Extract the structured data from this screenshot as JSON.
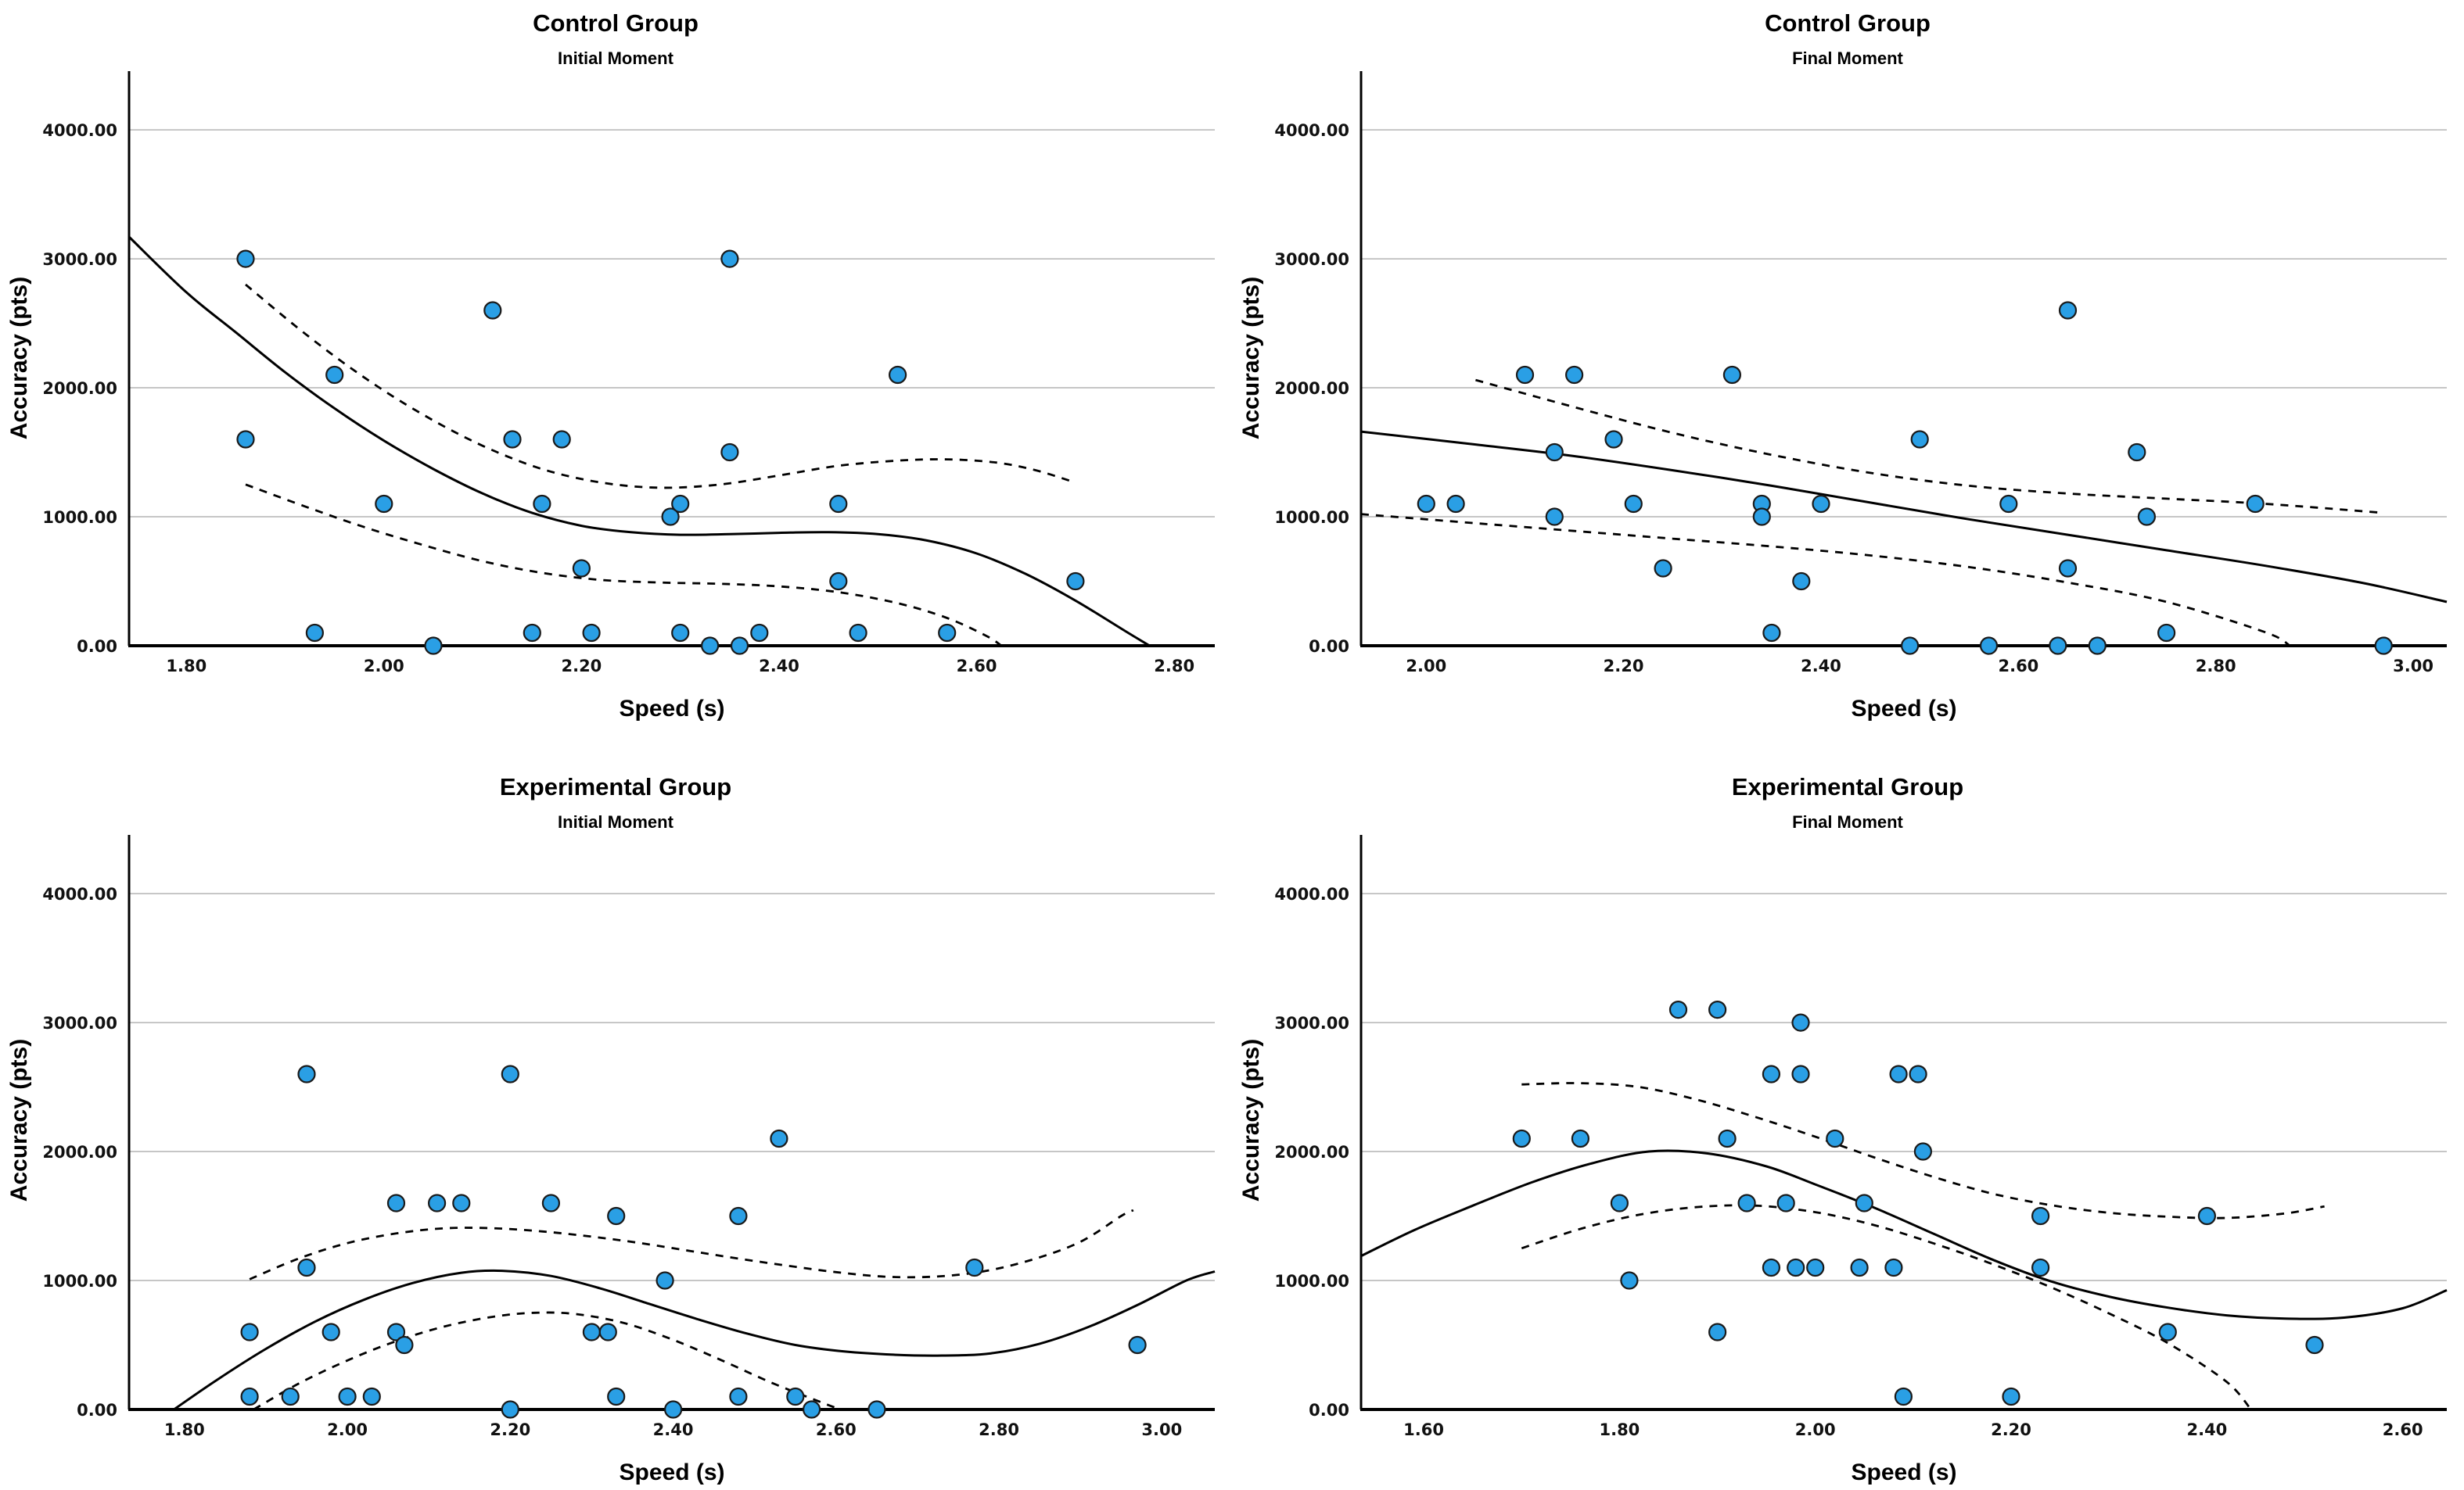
{
  "page": {
    "background": "#ffffff"
  },
  "style": {
    "point_fill": "#2A9FE5",
    "point_stroke": "#1a1a1a",
    "grid_color": "#b4b4b4",
    "axis_color": "#000000",
    "curve_color": "#000000",
    "text_color": "#000000"
  },
  "chart_data": [
    {
      "type": "scatter",
      "title": "Control Group",
      "subtitle": "Initial Moment",
      "xlabel": "Speed (s)",
      "ylabel": "Accuracy (pts)",
      "xlim": [
        1.742,
        2.841
      ],
      "ylim": [
        0,
        4455
      ],
      "grid": "horizontal",
      "x_tick_values": [
        1.8,
        2.0,
        2.2,
        2.4,
        2.6,
        2.8
      ],
      "x_tick_labels": [
        "1.80",
        "2.00",
        "2.20",
        "2.40",
        "2.60",
        "2.80"
      ],
      "y_tick_values": [
        0,
        1000,
        2000,
        3000,
        4000
      ],
      "y_tick_labels": [
        "0.00",
        "1000.00",
        "2000.00",
        "3000.00",
        "4000.00"
      ],
      "points": [
        [
          1.86,
          3000
        ],
        [
          1.86,
          1600
        ],
        [
          1.93,
          100
        ],
        [
          1.95,
          2100
        ],
        [
          2.0,
          1100
        ],
        [
          2.05,
          0
        ],
        [
          2.11,
          2600
        ],
        [
          2.13,
          1600
        ],
        [
          2.15,
          100
        ],
        [
          2.16,
          1100
        ],
        [
          2.18,
          1600
        ],
        [
          2.2,
          600
        ],
        [
          2.21,
          100
        ],
        [
          2.29,
          1000
        ],
        [
          2.3,
          1100
        ],
        [
          2.3,
          100
        ],
        [
          2.33,
          0
        ],
        [
          2.35,
          3000
        ],
        [
          2.35,
          1500
        ],
        [
          2.36,
          0
        ],
        [
          2.38,
          100
        ],
        [
          2.46,
          1100
        ],
        [
          2.46,
          500
        ],
        [
          2.48,
          100
        ],
        [
          2.52,
          2100
        ],
        [
          2.57,
          100
        ],
        [
          2.7,
          500
        ]
      ],
      "fit_line": [
        [
          1.742,
          3170
        ],
        [
          1.8,
          2740
        ],
        [
          1.85,
          2430
        ],
        [
          1.9,
          2120
        ],
        [
          1.95,
          1840
        ],
        [
          2.0,
          1590
        ],
        [
          2.05,
          1370
        ],
        [
          2.1,
          1180
        ],
        [
          2.15,
          1030
        ],
        [
          2.2,
          930
        ],
        [
          2.25,
          880
        ],
        [
          2.3,
          860
        ],
        [
          2.35,
          865
        ],
        [
          2.4,
          875
        ],
        [
          2.45,
          880
        ],
        [
          2.5,
          865
        ],
        [
          2.55,
          815
        ],
        [
          2.6,
          715
        ],
        [
          2.65,
          555
        ],
        [
          2.7,
          350
        ],
        [
          2.75,
          115
        ],
        [
          2.775,
          0
        ]
      ],
      "ci_upper": [
        [
          1.86,
          2800
        ],
        [
          1.92,
          2420
        ],
        [
          1.98,
          2080
        ],
        [
          2.04,
          1790
        ],
        [
          2.1,
          1550
        ],
        [
          2.16,
          1370
        ],
        [
          2.22,
          1265
        ],
        [
          2.28,
          1225
        ],
        [
          2.34,
          1250
        ],
        [
          2.4,
          1320
        ],
        [
          2.46,
          1395
        ],
        [
          2.52,
          1435
        ],
        [
          2.57,
          1445
        ],
        [
          2.62,
          1420
        ],
        [
          2.66,
          1360
        ],
        [
          2.7,
          1265
        ]
      ],
      "ci_lower": [
        [
          1.86,
          1250
        ],
        [
          1.92,
          1080
        ],
        [
          1.98,
          920
        ],
        [
          2.04,
          780
        ],
        [
          2.1,
          655
        ],
        [
          2.16,
          565
        ],
        [
          2.22,
          510
        ],
        [
          2.28,
          490
        ],
        [
          2.34,
          480
        ],
        [
          2.4,
          460
        ],
        [
          2.46,
          415
        ],
        [
          2.52,
          330
        ],
        [
          2.57,
          215
        ],
        [
          2.61,
          75
        ],
        [
          2.625,
          0
        ]
      ]
    },
    {
      "type": "scatter",
      "title": "Control Group",
      "subtitle": "Final Moment",
      "xlabel": "Speed (s)",
      "ylabel": "Accuracy (pts)",
      "xlim": [
        1.934,
        3.034
      ],
      "ylim": [
        0,
        4455
      ],
      "grid": "horizontal",
      "x_tick_values": [
        2.0,
        2.2,
        2.4,
        2.6,
        2.8,
        3.0
      ],
      "x_tick_labels": [
        "2.00",
        "2.20",
        "2.40",
        "2.60",
        "2.80",
        "3.00"
      ],
      "y_tick_values": [
        0,
        1000,
        2000,
        3000,
        4000
      ],
      "y_tick_labels": [
        "0.00",
        "1000.00",
        "2000.00",
        "3000.00",
        "4000.00"
      ],
      "points": [
        [
          2.0,
          1100
        ],
        [
          2.03,
          1100
        ],
        [
          2.1,
          2100
        ],
        [
          2.13,
          1500
        ],
        [
          2.13,
          1000
        ],
        [
          2.15,
          2100
        ],
        [
          2.19,
          1600
        ],
        [
          2.21,
          1100
        ],
        [
          2.24,
          600
        ],
        [
          2.31,
          2100
        ],
        [
          2.34,
          1100
        ],
        [
          2.34,
          1000
        ],
        [
          2.35,
          100
        ],
        [
          2.38,
          500
        ],
        [
          2.4,
          1100
        ],
        [
          2.49,
          0
        ],
        [
          2.5,
          1600
        ],
        [
          2.57,
          0
        ],
        [
          2.59,
          1100
        ],
        [
          2.64,
          0
        ],
        [
          2.65,
          2600
        ],
        [
          2.65,
          600
        ],
        [
          2.68,
          0
        ],
        [
          2.72,
          1500
        ],
        [
          2.73,
          1000
        ],
        [
          2.75,
          100
        ],
        [
          2.84,
          1100
        ],
        [
          2.97,
          0
        ]
      ],
      "fit_line": [
        [
          1.934,
          1660
        ],
        [
          2.05,
          1560
        ],
        [
          2.15,
          1470
        ],
        [
          2.25,
          1360
        ],
        [
          2.35,
          1240
        ],
        [
          2.45,
          1110
        ],
        [
          2.55,
          980
        ],
        [
          2.65,
          860
        ],
        [
          2.75,
          740
        ],
        [
          2.85,
          620
        ],
        [
          2.95,
          485
        ],
        [
          3.034,
          340
        ]
      ],
      "ci_upper": [
        [
          2.05,
          2060
        ],
        [
          2.15,
          1850
        ],
        [
          2.25,
          1650
        ],
        [
          2.35,
          1480
        ],
        [
          2.45,
          1340
        ],
        [
          2.55,
          1240
        ],
        [
          2.65,
          1180
        ],
        [
          2.75,
          1140
        ],
        [
          2.85,
          1100
        ],
        [
          2.97,
          1030
        ]
      ],
      "ci_lower": [
        [
          1.934,
          1020
        ],
        [
          2.05,
          950
        ],
        [
          2.15,
          890
        ],
        [
          2.25,
          830
        ],
        [
          2.35,
          770
        ],
        [
          2.45,
          700
        ],
        [
          2.55,
          610
        ],
        [
          2.65,
          490
        ],
        [
          2.75,
          340
        ],
        [
          2.85,
          105
        ],
        [
          2.875,
          0
        ]
      ]
    },
    {
      "type": "scatter",
      "title": "Experimental Group",
      "subtitle": "Initial Moment",
      "xlabel": "Speed (s)",
      "ylabel": "Accuracy (pts)",
      "xlim": [
        1.732,
        3.065
      ],
      "ylim": [
        0,
        4455
      ],
      "grid": "horizontal",
      "x_tick_values": [
        1.8,
        2.0,
        2.2,
        2.4,
        2.6,
        2.8,
        3.0
      ],
      "x_tick_labels": [
        "1.80",
        "2.00",
        "2.20",
        "2.40",
        "2.60",
        "2.80",
        "3.00"
      ],
      "y_tick_values": [
        0,
        1000,
        2000,
        3000,
        4000
      ],
      "y_tick_labels": [
        "0.00",
        "1000.00",
        "2000.00",
        "3000.00",
        "4000.00"
      ],
      "points": [
        [
          1.88,
          600
        ],
        [
          1.88,
          100
        ],
        [
          1.93,
          100
        ],
        [
          1.95,
          2600
        ],
        [
          1.95,
          1100
        ],
        [
          1.98,
          600
        ],
        [
          2.0,
          100
        ],
        [
          2.03,
          100
        ],
        [
          2.06,
          1600
        ],
        [
          2.06,
          600
        ],
        [
          2.07,
          500
        ],
        [
          2.11,
          1600
        ],
        [
          2.14,
          1600
        ],
        [
          2.2,
          2600
        ],
        [
          2.2,
          0
        ],
        [
          2.25,
          1600
        ],
        [
          2.3,
          600
        ],
        [
          2.32,
          600
        ],
        [
          2.33,
          1500
        ],
        [
          2.33,
          100
        ],
        [
          2.39,
          1000
        ],
        [
          2.4,
          0
        ],
        [
          2.48,
          1500
        ],
        [
          2.48,
          100
        ],
        [
          2.53,
          2100
        ],
        [
          2.55,
          100
        ],
        [
          2.57,
          0
        ],
        [
          2.65,
          0
        ],
        [
          2.77,
          1100
        ],
        [
          2.97,
          500
        ]
      ],
      "fit_line": [
        [
          1.787,
          0
        ],
        [
          1.84,
          230
        ],
        [
          1.9,
          470
        ],
        [
          1.96,
          680
        ],
        [
          2.02,
          850
        ],
        [
          2.08,
          980
        ],
        [
          2.14,
          1060
        ],
        [
          2.19,
          1075
        ],
        [
          2.25,
          1035
        ],
        [
          2.31,
          940
        ],
        [
          2.37,
          820
        ],
        [
          2.43,
          700
        ],
        [
          2.49,
          590
        ],
        [
          2.55,
          500
        ],
        [
          2.61,
          450
        ],
        [
          2.67,
          425
        ],
        [
          2.73,
          418
        ],
        [
          2.79,
          435
        ],
        [
          2.85,
          510
        ],
        [
          2.91,
          640
        ],
        [
          2.97,
          810
        ],
        [
          3.03,
          1000
        ],
        [
          3.065,
          1070
        ]
      ],
      "ci_upper": [
        [
          1.88,
          1010
        ],
        [
          1.94,
          1170
        ],
        [
          2.0,
          1290
        ],
        [
          2.06,
          1365
        ],
        [
          2.12,
          1405
        ],
        [
          2.18,
          1405
        ],
        [
          2.24,
          1380
        ],
        [
          2.3,
          1340
        ],
        [
          2.36,
          1290
        ],
        [
          2.42,
          1230
        ],
        [
          2.48,
          1170
        ],
        [
          2.54,
          1115
        ],
        [
          2.6,
          1065
        ],
        [
          2.66,
          1030
        ],
        [
          2.72,
          1030
        ],
        [
          2.78,
          1070
        ],
        [
          2.84,
          1160
        ],
        [
          2.9,
          1300
        ],
        [
          2.95,
          1500
        ],
        [
          2.965,
          1545
        ]
      ],
      "ci_lower": [
        [
          1.885,
          0
        ],
        [
          1.94,
          200
        ],
        [
          2.0,
          380
        ],
        [
          2.06,
          530
        ],
        [
          2.12,
          645
        ],
        [
          2.18,
          720
        ],
        [
          2.23,
          750
        ],
        [
          2.28,
          740
        ],
        [
          2.34,
          670
        ],
        [
          2.4,
          540
        ],
        [
          2.46,
          380
        ],
        [
          2.52,
          210
        ],
        [
          2.58,
          60
        ],
        [
          2.605,
          0
        ]
      ]
    },
    {
      "type": "scatter",
      "title": "Experimental Group",
      "subtitle": "Final Moment",
      "xlabel": "Speed (s)",
      "ylabel": "Accuracy (pts)",
      "xlim": [
        1.536,
        2.645
      ],
      "ylim": [
        0,
        4455
      ],
      "grid": "horizontal",
      "x_tick_values": [
        1.6,
        1.8,
        2.0,
        2.2,
        2.4,
        2.6
      ],
      "x_tick_labels": [
        "1.60",
        "1.80",
        "2.00",
        "2.20",
        "2.40",
        "2.60"
      ],
      "y_tick_values": [
        0,
        1000,
        2000,
        3000,
        4000
      ],
      "y_tick_labels": [
        "0.00",
        "1000.00",
        "2000.00",
        "3000.00",
        "4000.00"
      ],
      "points": [
        [
          1.7,
          2100
        ],
        [
          1.76,
          2100
        ],
        [
          1.8,
          1600
        ],
        [
          1.81,
          1000
        ],
        [
          1.86,
          3100
        ],
        [
          1.9,
          3100
        ],
        [
          1.9,
          600
        ],
        [
          1.91,
          2100
        ],
        [
          1.93,
          1600
        ],
        [
          1.955,
          2600
        ],
        [
          1.955,
          1100
        ],
        [
          1.97,
          1600
        ],
        [
          1.98,
          1100
        ],
        [
          1.985,
          3000
        ],
        [
          1.985,
          2600
        ],
        [
          2.0,
          1100
        ],
        [
          2.02,
          2100
        ],
        [
          2.045,
          1100
        ],
        [
          2.05,
          1600
        ],
        [
          2.08,
          1100
        ],
        [
          2.085,
          2600
        ],
        [
          2.105,
          2600
        ],
        [
          2.09,
          100
        ],
        [
          2.11,
          2000
        ],
        [
          2.2,
          100
        ],
        [
          2.23,
          1500
        ],
        [
          2.23,
          1100
        ],
        [
          2.36,
          600
        ],
        [
          2.4,
          1500
        ],
        [
          2.51,
          500
        ]
      ],
      "fit_line": [
        [
          1.536,
          1190
        ],
        [
          1.59,
          1390
        ],
        [
          1.65,
          1580
        ],
        [
          1.71,
          1760
        ],
        [
          1.77,
          1905
        ],
        [
          1.83,
          2000
        ],
        [
          1.89,
          1985
        ],
        [
          1.95,
          1885
        ],
        [
          2.0,
          1745
        ],
        [
          2.06,
          1565
        ],
        [
          2.12,
          1365
        ],
        [
          2.18,
          1165
        ],
        [
          2.24,
          995
        ],
        [
          2.3,
          875
        ],
        [
          2.36,
          790
        ],
        [
          2.42,
          730
        ],
        [
          2.48,
          705
        ],
        [
          2.54,
          712
        ],
        [
          2.6,
          785
        ],
        [
          2.645,
          925
        ]
      ],
      "ci_upper": [
        [
          1.7,
          2520
        ],
        [
          1.76,
          2530
        ],
        [
          1.82,
          2500
        ],
        [
          1.88,
          2400
        ],
        [
          1.94,
          2265
        ],
        [
          2.0,
          2115
        ],
        [
          2.06,
          1955
        ],
        [
          2.12,
          1805
        ],
        [
          2.18,
          1675
        ],
        [
          2.24,
          1585
        ],
        [
          2.3,
          1525
        ],
        [
          2.36,
          1495
        ],
        [
          2.42,
          1485
        ],
        [
          2.48,
          1520
        ],
        [
          2.52,
          1575
        ]
      ],
      "ci_lower": [
        [
          1.7,
          1250
        ],
        [
          1.76,
          1400
        ],
        [
          1.82,
          1510
        ],
        [
          1.88,
          1570
        ],
        [
          1.94,
          1580
        ],
        [
          2.0,
          1530
        ],
        [
          2.06,
          1430
        ],
        [
          2.12,
          1290
        ],
        [
          2.18,
          1130
        ],
        [
          2.24,
          950
        ],
        [
          2.3,
          745
        ],
        [
          2.36,
          515
        ],
        [
          2.42,
          215
        ],
        [
          2.445,
          0
        ]
      ]
    }
  ]
}
